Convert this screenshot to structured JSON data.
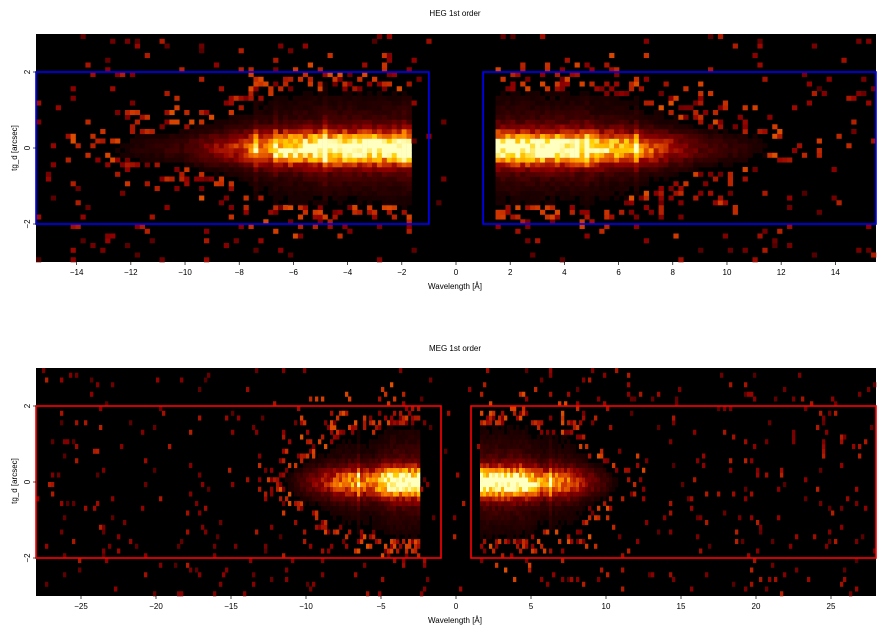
{
  "chart_data": [
    {
      "type": "heatmap",
      "title": "HEG 1st order",
      "xlabel": "Wavelength [Å]",
      "ylabel": "tg_d [arcsec]",
      "xlim": [
        -15.5,
        15.5
      ],
      "ylim": [
        -3.0,
        3.0
      ],
      "xticks": [
        -14,
        -12,
        -10,
        -8,
        -6,
        -4,
        -2,
        0,
        2,
        4,
        6,
        8,
        10,
        12,
        14
      ],
      "xtick_labels": [
        "−14",
        "−12",
        "−10",
        "−8",
        "−6",
        "−4",
        "−2",
        "0",
        "2",
        "4",
        "6",
        "8",
        "10",
        "12",
        "14"
      ],
      "yticks": [
        -2,
        0,
        2
      ],
      "ytick_labels": [
        "−2",
        "0",
        "2"
      ],
      "region_color": "#0000ff",
      "regions": [
        {
          "x": [
            -15.5,
            -1.0
          ],
          "y": [
            -2.0,
            2.0
          ]
        },
        {
          "x": [
            1.0,
            15.5
          ],
          "y": [
            -2.0,
            2.0
          ]
        }
      ],
      "bins": {
        "x": 170,
        "y": 48
      },
      "spatial_sigma": 0.28,
      "noise_rate": 0.05,
      "background": "#000000",
      "colormap": [
        "#000000",
        "#4a0000",
        "#900000",
        "#d23a00",
        "#ff8c00",
        "#ffd000",
        "#ffffc0"
      ],
      "spectrum": {
        "negative": {
          "core_range": [
            -5.2,
            -1.7
          ],
          "core": 1.0,
          "shoulder": [
            {
              "x": -5.2,
              "y": 1.0
            },
            {
              "x": -7.0,
              "y": 0.62
            },
            {
              "x": -8.6,
              "y": 0.3
            },
            {
              "x": -10.0,
              "y": 0.12
            },
            {
              "x": -12.5,
              "y": 0.04
            }
          ],
          "lines": [
            -7.4,
            -6.7,
            -6.2,
            -4.8,
            -1.85
          ],
          "edge": -1.6
        },
        "positive": {
          "core_range": [
            1.6,
            4.3
          ],
          "core": 1.0,
          "shoulder": [
            {
              "x": 4.3,
              "y": 1.0
            },
            {
              "x": 6.0,
              "y": 0.72
            },
            {
              "x": 7.5,
              "y": 0.42
            },
            {
              "x": 9.0,
              "y": 0.16
            },
            {
              "x": 11.5,
              "y": 0.04
            }
          ],
          "lines": [
            4.9,
            6.2,
            6.7
          ],
          "edge": 1.5
        }
      }
    },
    {
      "type": "heatmap",
      "title": "MEG 1st order",
      "xlabel": "Wavelength [Å]",
      "ylabel": "tg_d [arcsec]",
      "xlim": [
        -28.0,
        28.0
      ],
      "ylim": [
        -3.0,
        3.0
      ],
      "xticks": [
        -25,
        -20,
        -15,
        -10,
        -5,
        0,
        5,
        10,
        15,
        20,
        25
      ],
      "xtick_labels": [
        "−25",
        "−20",
        "−15",
        "−10",
        "−5",
        "0",
        "5",
        "10",
        "15",
        "20",
        "25"
      ],
      "yticks": [
        -2,
        0,
        2
      ],
      "ytick_labels": [
        "−2",
        "0",
        "2"
      ],
      "region_color": "#ff0000",
      "regions": [
        {
          "x": [
            -28.0,
            -1.0
          ],
          "y": [
            -2.0,
            2.0
          ]
        },
        {
          "x": [
            1.0,
            28.0
          ],
          "y": [
            -2.0,
            2.0
          ]
        }
      ],
      "bins": {
        "x": 280,
        "y": 48
      },
      "spatial_sigma": 0.26,
      "noise_rate": 0.04,
      "background": "#000000",
      "colormap": [
        "#000000",
        "#4a0000",
        "#900000",
        "#d23a00",
        "#ff8c00",
        "#ffd000",
        "#ffffc0"
      ],
      "spectrum": {
        "negative": {
          "core_range": [
            -4.3,
            -2.6
          ],
          "core": 1.0,
          "shoulder": [
            {
              "x": -4.3,
              "y": 1.0
            },
            {
              "x": -5.5,
              "y": 0.55
            },
            {
              "x": -7.5,
              "y": 0.55
            },
            {
              "x": -9.0,
              "y": 0.3
            },
            {
              "x": -11.0,
              "y": 0.06
            }
          ],
          "lines": [
            -7.0,
            -6.5,
            -4.8
          ],
          "edge": -2.4
        },
        "positive": {
          "core_range": [
            2.5,
            4.5
          ],
          "core": 1.0,
          "shoulder": [
            {
              "x": 4.5,
              "y": 1.0
            },
            {
              "x": 5.5,
              "y": 0.6
            },
            {
              "x": 7.5,
              "y": 0.55
            },
            {
              "x": 8.8,
              "y": 0.25
            },
            {
              "x": 10.5,
              "y": 0.05
            }
          ],
          "lines": [
            5.4,
            6.3,
            6.8
          ],
          "edge": 1.6
        }
      }
    }
  ]
}
